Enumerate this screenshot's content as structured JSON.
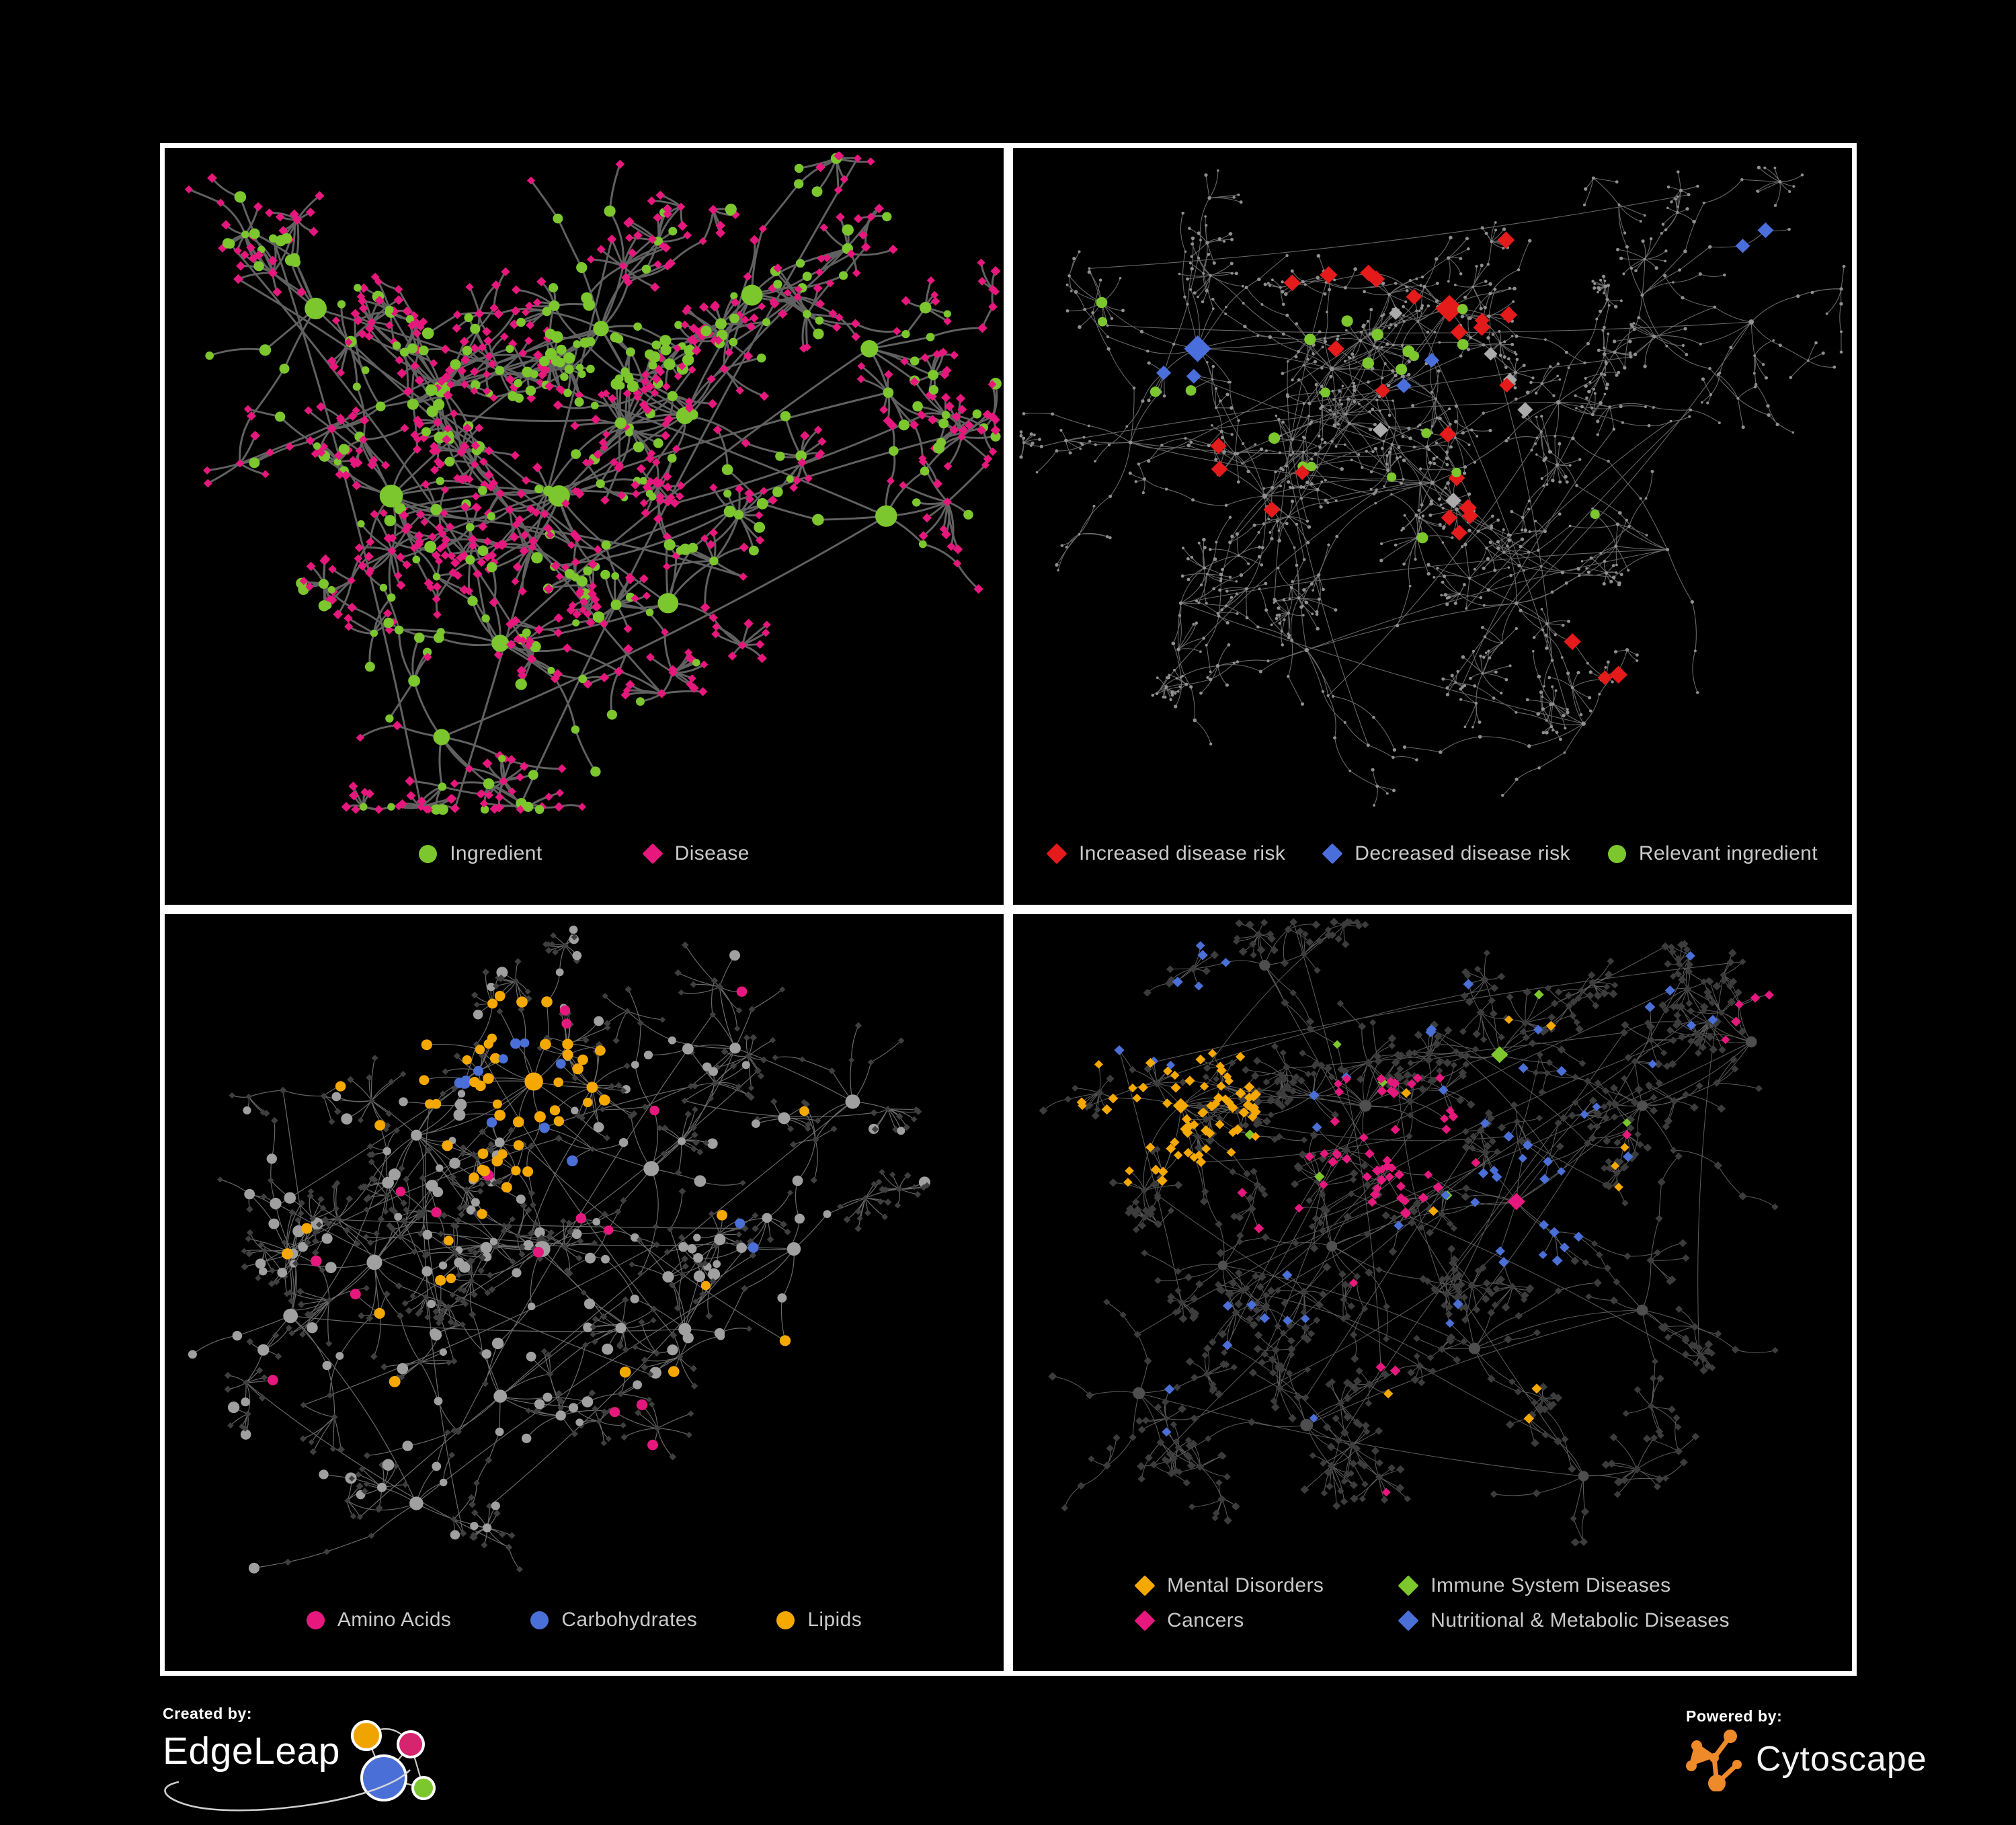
{
  "page": {
    "background": "#000000",
    "panel_border_color": "#ffffff",
    "legend_text_color": "#c9c9c9"
  },
  "footer": {
    "created_by": {
      "label": "Created by:",
      "brand": "EdgeLeap",
      "logo_colors": {
        "orange": "#F0A400",
        "pink": "#D6256E",
        "blue": "#4A6FD6",
        "green": "#7CC62E"
      }
    },
    "powered_by": {
      "label": "Powered by:",
      "brand": "Cytoscape",
      "logo_color": "#EE8A2A"
    }
  },
  "chart_data": [
    {
      "id": "ingredient-disease-network",
      "position": "top-left",
      "type": "network",
      "description": "Ingredient-disease association network; green circle nodes are ingredients (hubs), pink diamond nodes are diseases (mostly leaves), gray curved edges.",
      "node_count_estimate": 520,
      "legend": [
        {
          "label": "Ingredient",
          "marker": "circle",
          "color": "#7CC62E"
        },
        {
          "label": "Disease",
          "marker": "diamond",
          "color": "#E6187D"
        }
      ],
      "network": {
        "seed": 11,
        "step": 64,
        "stepsMin": 2,
        "stepsMax": 4,
        "fan": 0.32,
        "fanMax": 9,
        "extraLinks": 20,
        "edge": {
          "color": "#6F6F6F",
          "width": 3.0,
          "opacity": 0.88
        },
        "cats": {
          "ingredient": {
            "shape": "circle",
            "color": "#7CC62E",
            "size": [
              5.5,
              9
            ],
            "hubScale": 2.0
          },
          "disease": {
            "shape": "diamond",
            "color": "#E6187D",
            "size": [
              6,
              7.5
            ]
          }
        },
        "hubCats": [
          [
            "ingredient",
            1
          ]
        ],
        "innerCats": [
          [
            "ingredient",
            0.5
          ],
          [
            "disease",
            0.5
          ]
        ],
        "leafCats": [
          [
            "disease",
            0.8
          ],
          [
            "ingredient",
            0.2
          ]
        ],
        "clusters": [
          {
            "x": 0.33,
            "y": 0.36,
            "branches": 16
          },
          {
            "x": 0.52,
            "y": 0.27,
            "branches": 12
          },
          {
            "x": 0.27,
            "y": 0.52,
            "branches": 12
          },
          {
            "x": 0.47,
            "y": 0.52,
            "branches": 10
          },
          {
            "x": 0.62,
            "y": 0.4,
            "branches": 8
          },
          {
            "x": 0.7,
            "y": 0.22,
            "branches": 8
          },
          {
            "x": 0.84,
            "y": 0.3,
            "branches": 7
          },
          {
            "x": 0.4,
            "y": 0.74,
            "branches": 8
          },
          {
            "x": 0.6,
            "y": 0.68,
            "branches": 6
          },
          {
            "x": 0.18,
            "y": 0.24,
            "branches": 6
          },
          {
            "x": 0.86,
            "y": 0.55,
            "branches": 5
          },
          {
            "x": 0.33,
            "y": 0.88,
            "branches": 6
          }
        ],
        "highlights": [
          {
            "cat": "ingredient",
            "count": 40,
            "x": 0.52,
            "y": 0.27,
            "r": 0.1
          }
        ]
      }
    },
    {
      "id": "disease-risk-network",
      "position": "top-right",
      "type": "network",
      "description": "Same association network, de-emphasized in gray; highlighted diamonds mark increased (red) / decreased (blue) disease risk, silver diamonds neutral, green circles relevant ingredients.",
      "node_count_estimate": 600,
      "legend": [
        {
          "label": "Increased disease risk",
          "marker": "diamond",
          "color": "#E51A1A"
        },
        {
          "label": "Decreased disease risk",
          "marker": "diamond",
          "color": "#4A6EDB"
        },
        {
          "label": "Relevant ingredient",
          "marker": "circle",
          "color": "#7CC62E"
        }
      ],
      "network": {
        "seed": 22,
        "step": 58,
        "stepsMin": 3,
        "stepsMax": 5,
        "fan": 0.26,
        "fanMax": 8,
        "extraLinks": 30,
        "edge": {
          "color": "#828282",
          "width": 1.1,
          "opacity": 0.8
        },
        "cats": {
          "node": {
            "shape": "circle",
            "color": "#8F8F8F",
            "size": [
              1.8,
              2.8
            ],
            "hubScale": 1.4
          },
          "increased": {
            "shape": "diamond",
            "color": "#E51A1A",
            "size": [
              11,
              13.5
            ]
          },
          "decreased": {
            "shape": "diamond",
            "color": "#4A6EDB",
            "size": [
              10,
              12
            ]
          },
          "neutral": {
            "shape": "diamond",
            "color": "#ABABAB",
            "size": [
              10,
              12
            ]
          },
          "relevant": {
            "shape": "circle",
            "color": "#7CC62E",
            "size": [
              7,
              9
            ]
          }
        },
        "hubCats": [
          [
            "node",
            1
          ]
        ],
        "innerCats": [
          [
            "node",
            1
          ]
        ],
        "leafCats": [
          [
            "node",
            1
          ]
        ],
        "clusters": [
          {
            "x": 0.38,
            "y": 0.33,
            "branches": 16
          },
          {
            "x": 0.22,
            "y": 0.3,
            "branches": 10
          },
          {
            "x": 0.52,
            "y": 0.24,
            "branches": 10
          },
          {
            "x": 0.3,
            "y": 0.52,
            "branches": 10
          },
          {
            "x": 0.5,
            "y": 0.5,
            "branches": 10
          },
          {
            "x": 0.14,
            "y": 0.44,
            "branches": 7
          },
          {
            "x": 0.65,
            "y": 0.38,
            "branches": 8
          },
          {
            "x": 0.75,
            "y": 0.22,
            "branches": 7
          },
          {
            "x": 0.88,
            "y": 0.26,
            "branches": 6
          },
          {
            "x": 0.6,
            "y": 0.68,
            "branches": 8
          },
          {
            "x": 0.35,
            "y": 0.75,
            "branches": 7
          },
          {
            "x": 0.78,
            "y": 0.6,
            "branches": 6
          },
          {
            "x": 0.2,
            "y": 0.68,
            "branches": 6
          },
          {
            "x": 0.68,
            "y": 0.86,
            "branches": 6
          }
        ],
        "highlights": [
          {
            "cat": "increased",
            "count": 22,
            "x": 0.42,
            "y": 0.36,
            "r": 0.26
          },
          {
            "cat": "increased",
            "count": 3,
            "x": 0.74,
            "y": 0.76,
            "r": 0.1
          },
          {
            "cat": "increased",
            "count": 2,
            "x": 0.56,
            "y": 0.2,
            "r": 0.08
          },
          {
            "cat": "decreased",
            "count": 3,
            "x": 0.2,
            "y": 0.3,
            "r": 0.06
          },
          {
            "cat": "decreased",
            "count": 2,
            "x": 0.9,
            "y": 0.17,
            "r": 0.05
          },
          {
            "cat": "decreased",
            "count": 2,
            "x": 0.5,
            "y": 0.34,
            "r": 0.05
          },
          {
            "cat": "neutral",
            "count": 6,
            "x": 0.44,
            "y": 0.44,
            "r": 0.28
          },
          {
            "cat": "relevant",
            "count": 15,
            "x": 0.4,
            "y": 0.33,
            "r": 0.2
          },
          {
            "cat": "relevant",
            "count": 4,
            "x": 0.16,
            "y": 0.3,
            "r": 0.1
          },
          {
            "cat": "relevant",
            "count": 3,
            "x": 0.6,
            "y": 0.6,
            "r": 0.15
          }
        ]
      }
    },
    {
      "id": "nutrient-class-network",
      "position": "bottom-left",
      "type": "network",
      "description": "Same network with ingredient nodes colored by nutrient class: pink = amino acids, blue = carbohydrates, orange = lipids; gray circles other ingredients, dark diamonds diseases.",
      "node_count_estimate": 540,
      "legend": [
        {
          "label": "Amino Acids",
          "marker": "circle",
          "color": "#E6187D"
        },
        {
          "label": "Carbohydrates",
          "marker": "circle",
          "color": "#4A6FD6"
        },
        {
          "label": "Lipids",
          "marker": "circle",
          "color": "#F5A800"
        }
      ],
      "network": {
        "seed": 33,
        "step": 60,
        "stepsMin": 2,
        "stepsMax": 4,
        "fan": 0.27,
        "fanMax": 9,
        "extraLinks": 25,
        "edge": {
          "color": "#989898",
          "width": 1.2,
          "opacity": 0.7
        },
        "cats": {
          "metab": {
            "shape": "circle",
            "color": "#A0A0A0",
            "size": [
              5.5,
              9
            ],
            "hubScale": 1.5
          },
          "other": {
            "shape": "diamond",
            "color": "#3F3F3F",
            "size": [
              4.5,
              5.5
            ]
          },
          "amino": {
            "shape": "circle",
            "color": "#E6187D",
            "size": [
              7,
              8.5
            ]
          },
          "carb": {
            "shape": "circle",
            "color": "#4A6FD6",
            "size": [
              7,
              8.5
            ]
          },
          "lipid": {
            "shape": "circle",
            "color": "#F5A800",
            "size": [
              7,
              8.5
            ]
          }
        },
        "hubCats": [
          [
            "metab",
            1
          ]
        ],
        "innerCats": [
          [
            "metab",
            0.55
          ],
          [
            "other",
            0.45
          ]
        ],
        "leafCats": [
          [
            "other",
            0.85
          ],
          [
            "metab",
            0.15
          ]
        ],
        "clusters": [
          {
            "x": 0.3,
            "y": 0.33,
            "branches": 14
          },
          {
            "x": 0.44,
            "y": 0.25,
            "branches": 12
          },
          {
            "x": 0.25,
            "y": 0.52,
            "branches": 10
          },
          {
            "x": 0.45,
            "y": 0.5,
            "branches": 10
          },
          {
            "x": 0.58,
            "y": 0.38,
            "branches": 8
          },
          {
            "x": 0.68,
            "y": 0.2,
            "branches": 7
          },
          {
            "x": 0.82,
            "y": 0.28,
            "branches": 6
          },
          {
            "x": 0.4,
            "y": 0.72,
            "branches": 8
          },
          {
            "x": 0.62,
            "y": 0.62,
            "branches": 7
          },
          {
            "x": 0.15,
            "y": 0.6,
            "branches": 6
          },
          {
            "x": 0.3,
            "y": 0.88,
            "branches": 6
          },
          {
            "x": 0.75,
            "y": 0.5,
            "branches": 5
          }
        ],
        "highlights": [
          {
            "cat": "lipid",
            "count": 42,
            "x": 0.42,
            "y": 0.26,
            "r": 0.15
          },
          {
            "cat": "lipid",
            "count": 18,
            "x": 0.45,
            "y": 0.45,
            "r": 0.42
          },
          {
            "cat": "carb",
            "count": 10,
            "x": 0.42,
            "y": 0.24,
            "r": 0.09
          },
          {
            "cat": "carb",
            "count": 3,
            "x": 0.6,
            "y": 0.55,
            "r": 0.25
          },
          {
            "cat": "amino",
            "count": 12,
            "x": 0.4,
            "y": 0.62,
            "r": 0.38
          },
          {
            "cat": "amino",
            "count": 4,
            "x": 0.55,
            "y": 0.12,
            "r": 0.25
          }
        ]
      }
    },
    {
      "id": "disease-class-network",
      "position": "bottom-right",
      "type": "network",
      "description": "Same network with disease nodes colored by class: orange = mental disorders, green = immune system diseases, pink = cancers, blue = nutritional & metabolic diseases; dark diamonds other diseases.",
      "node_count_estimate": 680,
      "legend": [
        {
          "label": "Mental Disorders",
          "marker": "diamond",
          "color": "#F5A800"
        },
        {
          "label": "Immune System Diseases",
          "marker": "diamond",
          "color": "#7CC62E"
        },
        {
          "label": "Cancers",
          "marker": "diamond",
          "color": "#E6187D"
        },
        {
          "label": "Nutritional & Metabolic Diseases",
          "marker": "diamond",
          "color": "#4A6FD6"
        }
      ],
      "network": {
        "seed": 44,
        "step": 52,
        "stepsMin": 2,
        "stepsMax": 4,
        "fan": 0.3,
        "fanMax": 9,
        "extraLinks": 35,
        "edge": {
          "color": "#7A7A7A",
          "width": 1.05,
          "opacity": 0.75
        },
        "cats": {
          "disease": {
            "shape": "diamond",
            "color": "#3C3C3C",
            "size": [
              5,
              6.5
            ]
          },
          "hub": {
            "shape": "circle",
            "color": "#4E4E4E",
            "size": [
              5.5,
              7.5
            ],
            "hubScale": 1.3
          },
          "mental": {
            "shape": "diamond",
            "color": "#F5A800",
            "size": [
              6.5,
              8
            ]
          },
          "immune": {
            "shape": "diamond",
            "color": "#7CC62E",
            "size": [
              6.5,
              8
            ]
          },
          "cancer": {
            "shape": "diamond",
            "color": "#E6187D",
            "size": [
              6.5,
              8
            ]
          },
          "nutri": {
            "shape": "diamond",
            "color": "#4A6FD6",
            "size": [
              6.5,
              8
            ]
          }
        },
        "hubCats": [
          [
            "hub",
            1
          ]
        ],
        "innerCats": [
          [
            "disease",
            1
          ]
        ],
        "leafCats": [
          [
            "disease",
            1
          ]
        ],
        "clusters": [
          {
            "x": 0.2,
            "y": 0.3,
            "branches": 14
          },
          {
            "x": 0.42,
            "y": 0.3,
            "branches": 14
          },
          {
            "x": 0.58,
            "y": 0.22,
            "branches": 10
          },
          {
            "x": 0.38,
            "y": 0.52,
            "branches": 10
          },
          {
            "x": 0.6,
            "y": 0.45,
            "branches": 10
          },
          {
            "x": 0.75,
            "y": 0.3,
            "branches": 8
          },
          {
            "x": 0.88,
            "y": 0.2,
            "branches": 6
          },
          {
            "x": 0.25,
            "y": 0.55,
            "branches": 8
          },
          {
            "x": 0.55,
            "y": 0.68,
            "branches": 8
          },
          {
            "x": 0.75,
            "y": 0.62,
            "branches": 7
          },
          {
            "x": 0.35,
            "y": 0.8,
            "branches": 7
          },
          {
            "x": 0.15,
            "y": 0.75,
            "branches": 6
          },
          {
            "x": 0.68,
            "y": 0.88,
            "branches": 6
          },
          {
            "x": 0.3,
            "y": 0.08,
            "branches": 6
          }
        ],
        "highlights": [
          {
            "cat": "mental",
            "count": 70,
            "x": 0.19,
            "y": 0.3,
            "r": 0.14
          },
          {
            "cat": "mental",
            "count": 10,
            "x": 0.45,
            "y": 0.55,
            "r": 0.45
          },
          {
            "cat": "cancer",
            "count": 45,
            "x": 0.44,
            "y": 0.36,
            "r": 0.12
          },
          {
            "cat": "cancer",
            "count": 12,
            "x": 0.55,
            "y": 0.6,
            "r": 0.4
          },
          {
            "cat": "cancer",
            "count": 5,
            "x": 0.9,
            "y": 0.18,
            "r": 0.07
          },
          {
            "cat": "nutri",
            "count": 28,
            "x": 0.62,
            "y": 0.46,
            "r": 0.1
          },
          {
            "cat": "nutri",
            "count": 25,
            "x": 0.65,
            "y": 0.3,
            "r": 0.4
          },
          {
            "cat": "nutri",
            "count": 10,
            "x": 0.3,
            "y": 0.75,
            "r": 0.25
          },
          {
            "cat": "nutri",
            "count": 8,
            "x": 0.15,
            "y": 0.1,
            "r": 0.15
          },
          {
            "cat": "immune",
            "count": 8,
            "x": 0.45,
            "y": 0.4,
            "r": 0.4
          }
        ]
      }
    }
  ]
}
